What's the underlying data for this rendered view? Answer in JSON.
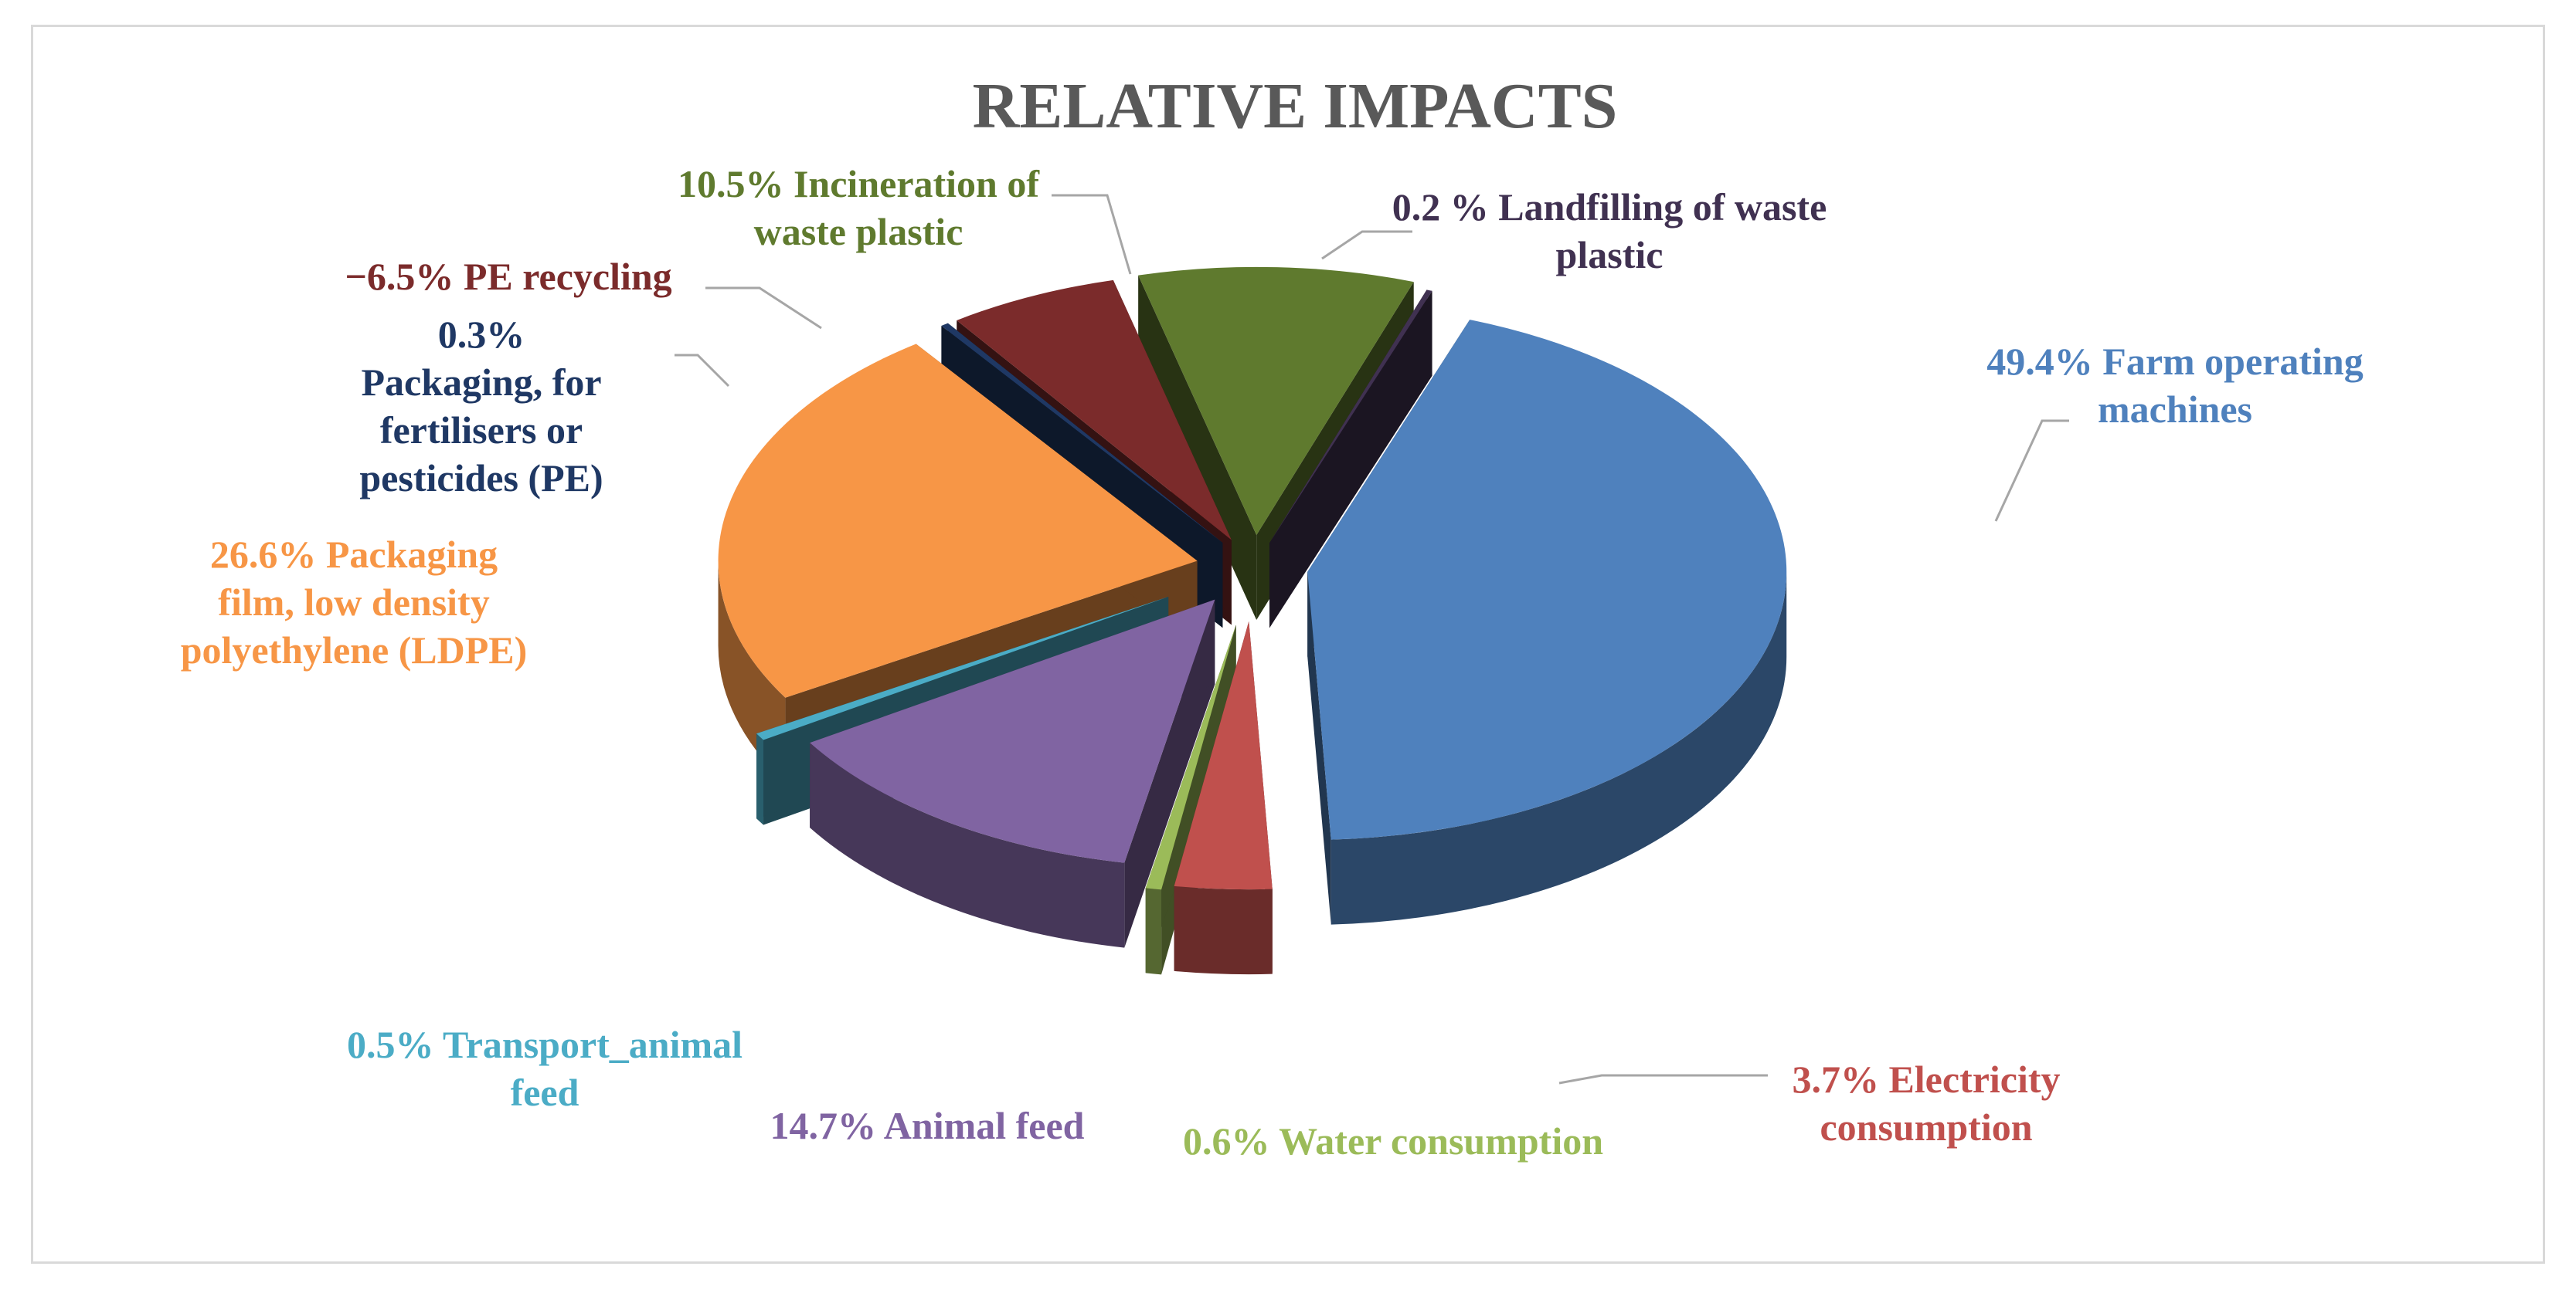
{
  "chart_data": {
    "type": "pie",
    "style": "exploded-3d",
    "title": "RELATIVE IMPACTS",
    "legend": "none",
    "slices": [
      {
        "name": "Farm operating machines",
        "value": 49.4,
        "label_lines": [
          "49.4% Farm operating",
          "machines"
        ],
        "color": "#4f81bd",
        "text_color": "#4f81bd"
      },
      {
        "name": "Electricity consumption",
        "value": 3.7,
        "label_lines": [
          "3.7% Electricity",
          "consumption"
        ],
        "color": "#c0504d",
        "text_color": "#c0504d"
      },
      {
        "name": "Water consumption",
        "value": 0.6,
        "label_lines": [
          "0.6% Water consumption"
        ],
        "color": "#9bbb59",
        "text_color": "#9bbb59"
      },
      {
        "name": "Animal feed",
        "value": 14.7,
        "label_lines": [
          "14.7% Animal feed"
        ],
        "color": "#8064a2",
        "text_color": "#8064a2"
      },
      {
        "name": "Transport_animal feed",
        "value": 0.5,
        "label_lines": [
          "0.5% Transport_animal",
          "feed"
        ],
        "color": "#4bacc6",
        "text_color": "#4bacc6"
      },
      {
        "name": "Packaging film, low density polyethylene (LDPE)",
        "value": 26.6,
        "label_lines": [
          "26.6% Packaging",
          "film, low density",
          "polyethylene (LDPE)"
        ],
        "color": "#f79646",
        "text_color": "#f79646"
      },
      {
        "name": "Packaging, for fertilisers or pesticides (PE)",
        "value": 0.3,
        "label_lines": [
          "0.3%",
          "Packaging, for",
          "fertilisers or",
          "pesticides (PE)"
        ],
        "color": "#1f3864",
        "text_color": "#1f3864"
      },
      {
        "name": "PE recycling",
        "value": -6.5,
        "label_lines": [
          "−6.5% PE recycling"
        ],
        "color": "#7b2b2b",
        "text_color": "#7b2b2b"
      },
      {
        "name": "Incineration of waste plastic",
        "value": 10.5,
        "label_lines": [
          "10.5% Incineration of",
          "waste plastic"
        ],
        "color": "#5f7a2e",
        "text_color": "#5f7a2e"
      },
      {
        "name": "Landfilling of waste plastic",
        "value": 0.2,
        "label_lines": [
          "0.2 % Landfilling of waste",
          "plastic"
        ],
        "color": "#403151",
        "text_color": "#403151"
      }
    ]
  }
}
